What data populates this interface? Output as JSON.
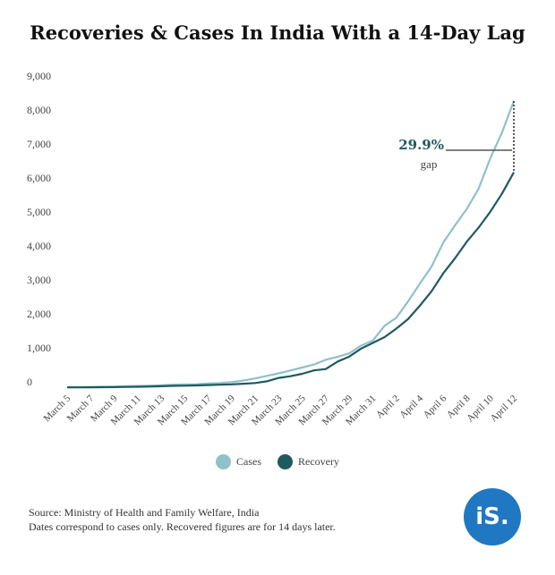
{
  "title": "Recoveries & Cases In India With a 14-Day Lag",
  "footer": {
    "line1": "Source: Ministry of Health and Family Welfare, India",
    "line2": "Dates correspond to cases only. Recovered figures are for 14 days later."
  },
  "logo": {
    "text": "iS."
  },
  "colors": {
    "cases": "#8fc1c8",
    "recovery": "#1f5a5e",
    "logo": "#1f78c1"
  },
  "chart_data": {
    "type": "line",
    "title": "Recoveries & Cases In India With a 14-Day Lag",
    "xlabel": "",
    "ylabel": "",
    "ylim": [
      0,
      9000
    ],
    "yticks": [
      0,
      1000,
      2000,
      3000,
      4000,
      5000,
      6000,
      7000,
      8000,
      9000
    ],
    "ytick_labels": [
      "0",
      "1,000",
      "2,000",
      "3,000",
      "4,000",
      "5,000",
      "6,000",
      "7,000",
      "8,000",
      "9,000"
    ],
    "x": [
      "March 5",
      "March 6",
      "March 7",
      "March 8",
      "March 9",
      "March 10",
      "March 11",
      "March 12",
      "March 13",
      "March 14",
      "March 15",
      "March 16",
      "March 17",
      "March 18",
      "March 19",
      "March 20",
      "March 21",
      "March 22",
      "March 23",
      "March 24",
      "March 25",
      "March 26",
      "March 27",
      "March 28",
      "March 29",
      "March 30",
      "March 31",
      "April 1",
      "April 2",
      "April 3",
      "April 4",
      "April 5",
      "April 6",
      "April 7",
      "April 8",
      "April 9",
      "April 10",
      "April 11",
      "April 12"
    ],
    "xtick_labels": [
      "March 5",
      "March 7",
      "March 9",
      "March 11",
      "March 13",
      "March 15",
      "March 17",
      "March 19",
      "March 21",
      "March 23",
      "March 25",
      "March 27",
      "March 29",
      "March 31",
      "April 2",
      "April 4",
      "April 6",
      "April 8",
      "April 10",
      "April 12"
    ],
    "series": [
      {
        "name": "Cases",
        "values": [
          30,
          31,
          34,
          39,
          43,
          56,
          62,
          73,
          82,
          100,
          110,
          114,
          137,
          151,
          173,
          223,
          283,
          360,
          434,
          519,
          606,
          694,
          834,
          918,
          1024,
          1251,
          1397,
          1834,
          2069,
          2547,
          3072,
          3577,
          4281,
          4789,
          5274,
          5865,
          6761,
          7529,
          8447
        ]
      },
      {
        "name": "Recovery",
        "values": [
          20,
          22,
          25,
          27,
          30,
          35,
          40,
          45,
          55,
          65,
          70,
          80,
          90,
          100,
          110,
          130,
          150,
          200,
          300,
          350,
          420,
          520,
          560,
          780,
          930,
          1160,
          1330,
          1500,
          1750,
          2030,
          2420,
          2850,
          3380,
          3820,
          4310,
          4720,
          5190,
          5730,
          6350
        ]
      }
    ],
    "annotation": {
      "value": "29.9%",
      "label": "gap"
    },
    "legend": "bottom-center",
    "grid": false
  }
}
